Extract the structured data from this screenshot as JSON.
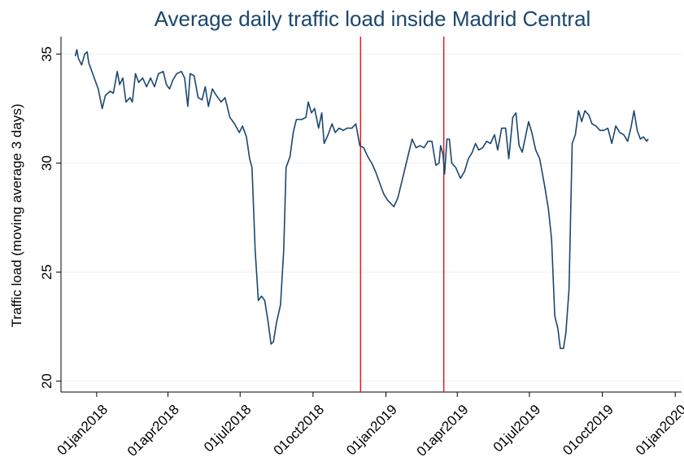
{
  "chart_data": {
    "type": "line",
    "title": "Average daily traffic load inside Madrid Central",
    "y_label": "Traffic load (moving average 3 days)",
    "x_scale": "date",
    "grid": true,
    "xlim": [
      "2017-11-17",
      "2020-01-09"
    ],
    "ylim": [
      19.5,
      35.8
    ],
    "yticks": [
      20,
      25,
      30,
      35
    ],
    "xticks": [
      {
        "value": "2018-01-01",
        "label": "01jan2018"
      },
      {
        "value": "2018-04-01",
        "label": "01apr2018"
      },
      {
        "value": "2018-07-01",
        "label": "01jul2018"
      },
      {
        "value": "2018-10-01",
        "label": "01oct2018"
      },
      {
        "value": "2019-01-01",
        "label": "01jan2019"
      },
      {
        "value": "2019-04-01",
        "label": "01apr2019"
      },
      {
        "value": "2019-07-01",
        "label": "01jul2019"
      },
      {
        "value": "2019-10-01",
        "label": "01oct2019"
      },
      {
        "value": "2020-01-01",
        "label": "01jan2020"
      }
    ],
    "vlines": [
      {
        "x": "2018-11-30",
        "color": "#e8191b"
      },
      {
        "x": "2019-03-15",
        "color": "#e8191b"
      }
    ],
    "x": [
      "2017-12-05",
      "2017-12-07",
      "2017-12-09",
      "2017-12-13",
      "2017-12-17",
      "2017-12-20",
      "2017-12-22",
      "2017-12-28",
      "2018-01-03",
      "2018-01-08",
      "2018-01-12",
      "2018-01-18",
      "2018-01-22",
      "2018-01-27",
      "2018-01-30",
      "2018-02-03",
      "2018-02-07",
      "2018-02-12",
      "2018-02-15",
      "2018-02-19",
      "2018-02-23",
      "2018-02-28",
      "2018-03-05",
      "2018-03-10",
      "2018-03-15",
      "2018-03-20",
      "2018-03-26",
      "2018-03-30",
      "2018-04-03",
      "2018-04-07",
      "2018-04-12",
      "2018-04-18",
      "2018-04-22",
      "2018-04-26",
      "2018-04-29",
      "2018-05-04",
      "2018-05-09",
      "2018-05-14",
      "2018-05-18",
      "2018-05-22",
      "2018-05-27",
      "2018-06-01",
      "2018-06-07",
      "2018-06-12",
      "2018-06-18",
      "2018-06-24",
      "2018-06-30",
      "2018-07-04",
      "2018-07-09",
      "2018-07-13",
      "2018-07-16",
      "2018-07-20",
      "2018-07-24",
      "2018-07-28",
      "2018-08-01",
      "2018-08-05",
      "2018-08-09",
      "2018-08-12",
      "2018-08-16",
      "2018-08-21",
      "2018-08-25",
      "2018-08-28",
      "2018-09-02",
      "2018-09-06",
      "2018-09-10",
      "2018-09-17",
      "2018-09-22",
      "2018-09-25",
      "2018-09-29",
      "2018-10-03",
      "2018-10-08",
      "2018-10-12",
      "2018-10-15",
      "2018-10-20",
      "2018-10-25",
      "2018-10-29",
      "2018-11-03",
      "2018-11-08",
      "2018-11-13",
      "2018-11-19",
      "2018-11-24",
      "2018-11-29",
      "2018-12-04",
      "2018-12-09",
      "2018-12-14",
      "2018-12-19",
      "2018-12-24",
      "2018-12-29",
      "2019-01-03",
      "2019-01-11",
      "2019-01-16",
      "2019-01-22",
      "2019-01-28",
      "2019-02-03",
      "2019-02-08",
      "2019-02-13",
      "2019-02-18",
      "2019-02-23",
      "2019-02-28",
      "2019-03-05",
      "2019-03-09",
      "2019-03-11",
      "2019-03-14",
      "2019-03-16",
      "2019-03-19",
      "2019-03-22",
      "2019-03-25",
      "2019-03-30",
      "2019-04-05",
      "2019-04-10",
      "2019-04-15",
      "2019-04-20",
      "2019-04-24",
      "2019-04-28",
      "2019-05-03",
      "2019-05-08",
      "2019-05-13",
      "2019-05-18",
      "2019-05-22",
      "2019-05-27",
      "2019-06-01",
      "2019-06-05",
      "2019-06-10",
      "2019-06-14",
      "2019-06-18",
      "2019-06-22",
      "2019-06-26",
      "2019-06-30",
      "2019-07-04",
      "2019-07-09",
      "2019-07-14",
      "2019-07-20",
      "2019-07-25",
      "2019-07-29",
      "2019-08-02",
      "2019-08-06",
      "2019-08-09",
      "2019-08-13",
      "2019-08-16",
      "2019-08-20",
      "2019-08-24",
      "2019-08-28",
      "2019-09-01",
      "2019-09-05",
      "2019-09-09",
      "2019-09-14",
      "2019-09-18",
      "2019-09-23",
      "2019-09-28",
      "2019-10-03",
      "2019-10-08",
      "2019-10-13",
      "2019-10-18",
      "2019-10-23",
      "2019-10-28",
      "2019-11-02",
      "2019-11-06",
      "2019-11-10",
      "2019-11-14",
      "2019-11-18",
      "2019-11-22",
      "2019-11-26",
      "2019-11-28"
    ],
    "color": "#1a476f",
    "values": [
      34.9,
      35.2,
      34.8,
      34.5,
      35.0,
      35.1,
      34.6,
      34.0,
      33.4,
      32.5,
      33.1,
      33.3,
      33.2,
      34.2,
      33.6,
      33.9,
      32.8,
      33.0,
      32.8,
      34.1,
      33.7,
      33.9,
      33.5,
      33.9,
      33.5,
      34.1,
      34.2,
      33.6,
      33.4,
      33.8,
      34.1,
      34.2,
      33.9,
      32.6,
      34.1,
      34.0,
      33.0,
      32.9,
      33.5,
      32.6,
      33.4,
      33.1,
      32.8,
      33.0,
      32.1,
      31.8,
      31.4,
      31.7,
      31.2,
      30.2,
      29.8,
      26.0,
      23.7,
      23.9,
      23.7,
      22.8,
      21.7,
      21.8,
      22.7,
      23.5,
      26.0,
      29.8,
      30.3,
      31.4,
      32.0,
      32.0,
      32.1,
      32.8,
      32.3,
      32.5,
      31.6,
      32.3,
      30.9,
      31.3,
      31.8,
      31.4,
      31.6,
      31.5,
      31.6,
      31.6,
      31.8,
      30.8,
      30.7,
      30.3,
      30.0,
      29.6,
      29.1,
      28.6,
      28.3,
      28.0,
      28.4,
      29.3,
      30.2,
      31.1,
      30.7,
      30.8,
      30.7,
      31.0,
      31.0,
      29.9,
      30.0,
      30.8,
      30.4,
      29.5,
      31.1,
      31.1,
      30.0,
      29.8,
      29.3,
      29.6,
      30.2,
      30.5,
      30.9,
      30.6,
      30.7,
      31.0,
      30.9,
      31.3,
      30.6,
      31.6,
      31.6,
      30.2,
      32.1,
      32.3,
      30.8,
      30.5,
      31.2,
      31.9,
      31.4,
      30.6,
      30.2,
      29.0,
      27.9,
      26.5,
      23.0,
      22.4,
      21.5,
      21.5,
      22.2,
      24.2,
      30.9,
      31.3,
      32.4,
      31.9,
      32.4,
      32.2,
      31.8,
      31.7,
      31.5,
      31.5,
      31.6,
      30.9,
      31.7,
      31.4,
      31.3,
      31.0,
      31.6,
      32.4,
      31.5,
      31.1,
      31.2,
      31.0,
      31.1
    ]
  }
}
